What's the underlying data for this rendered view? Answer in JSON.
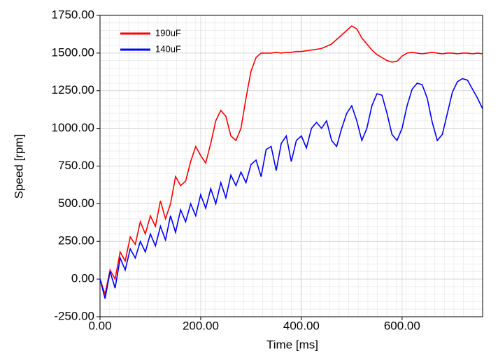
{
  "chart_data": {
    "type": "line",
    "x_label": "Time [ms]",
    "y_label": "Speed [rpm]",
    "x": [
      0,
      10,
      20,
      30,
      40,
      50,
      60,
      70,
      80,
      90,
      100,
      110,
      120,
      130,
      140,
      150,
      160,
      170,
      180,
      190,
      200,
      210,
      220,
      230,
      240,
      250,
      260,
      270,
      280,
      290,
      300,
      310,
      320,
      330,
      340,
      350,
      360,
      370,
      380,
      390,
      400,
      410,
      420,
      430,
      440,
      450,
      460,
      470,
      480,
      490,
      500,
      510,
      520,
      530,
      540,
      550,
      560,
      570,
      580,
      590,
      600,
      610,
      620,
      630,
      640,
      650,
      660,
      670,
      680,
      690,
      700,
      710,
      720,
      730,
      740,
      750,
      760
    ],
    "series": [
      {
        "name": "190uF",
        "color": "#ff0000",
        "values": [
          0,
          -100,
          60,
          0,
          180,
          120,
          280,
          230,
          380,
          300,
          420,
          350,
          520,
          400,
          500,
          680,
          620,
          650,
          780,
          880,
          820,
          770,
          900,
          1050,
          1120,
          1080,
          950,
          920,
          1000,
          1200,
          1380,
          1470,
          1500,
          1500,
          1500,
          1505,
          1500,
          1505,
          1505,
          1510,
          1510,
          1515,
          1520,
          1525,
          1530,
          1545,
          1560,
          1590,
          1620,
          1650,
          1680,
          1660,
          1600,
          1560,
          1520,
          1490,
          1470,
          1450,
          1440,
          1445,
          1480,
          1500,
          1505,
          1500,
          1495,
          1500,
          1505,
          1500,
          1495,
          1500,
          1500,
          1495,
          1500,
          1500,
          1495,
          1500,
          1495
        ]
      },
      {
        "name": "140uF",
        "color": "#0000ff",
        "values": [
          0,
          -130,
          50,
          -60,
          140,
          60,
          200,
          140,
          250,
          180,
          300,
          220,
          350,
          260,
          420,
          310,
          460,
          380,
          500,
          420,
          560,
          470,
          600,
          500,
          640,
          540,
          690,
          620,
          710,
          640,
          760,
          790,
          680,
          860,
          880,
          720,
          900,
          950,
          780,
          920,
          950,
          870,
          1000,
          1040,
          1000,
          1050,
          920,
          880,
          1000,
          1100,
          1150,
          1050,
          920,
          1000,
          1150,
          1230,
          1220,
          1100,
          960,
          920,
          1000,
          1150,
          1260,
          1300,
          1290,
          1200,
          1040,
          920,
          960,
          1100,
          1240,
          1310,
          1330,
          1320,
          1260,
          1200,
          1130
        ]
      }
    ],
    "xlim": [
      0,
      760
    ],
    "ylim": [
      -250,
      1750
    ],
    "xticks": [
      {
        "value": 0,
        "label": "0.00"
      },
      {
        "value": 200,
        "label": "200.00"
      },
      {
        "value": 400,
        "label": "400.00"
      },
      {
        "value": 600,
        "label": "600.00"
      }
    ],
    "yticks": [
      {
        "value": -250,
        "label": "-250.00"
      },
      {
        "value": 0,
        "label": "0.00"
      },
      {
        "value": 250,
        "label": "250.00"
      },
      {
        "value": 500,
        "label": "500.00"
      },
      {
        "value": 750,
        "label": "750.00"
      },
      {
        "value": 1000,
        "label": "1000.00"
      },
      {
        "value": 1250,
        "label": "1250.00"
      },
      {
        "value": 1500,
        "label": "1500.00"
      },
      {
        "value": 1750,
        "label": "1750.00"
      }
    ],
    "grid": true,
    "legend": "upper-left"
  }
}
